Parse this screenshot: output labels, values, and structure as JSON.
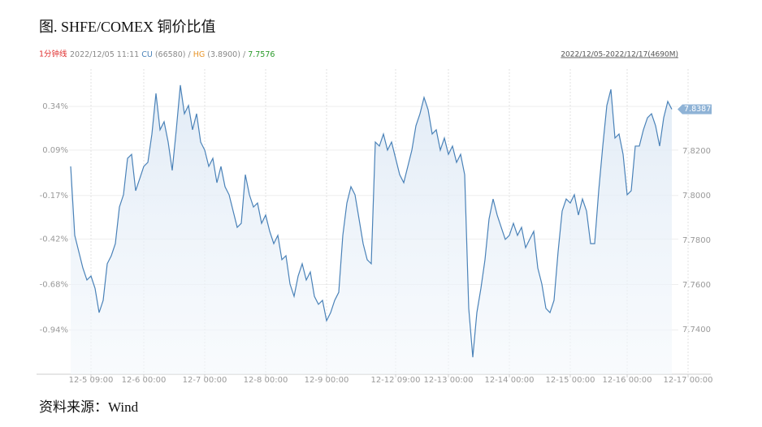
{
  "chart_data": {
    "type": "line",
    "title": "图. SHFE/COMEX 铜价比值",
    "source": "资料来源：Wind",
    "info": {
      "period": "1分钟线",
      "time": "2022/12/05 11:11",
      "cu_name": "CU",
      "cu_value": "(66580)",
      "separator": "/",
      "hg_name": "HG",
      "hg_value": "(3.8900)",
      "ratio": "7.7576",
      "range": "2022/12/05-2022/12/17(4690M)"
    },
    "categories": [
      null,
      null,
      null,
      null,
      null,
      "12-5 09:00",
      null,
      null,
      null,
      null,
      null,
      null,
      null,
      null,
      null,
      null,
      null,
      null,
      "12-6 00:00",
      null,
      null,
      null,
      null,
      null,
      null,
      null,
      null,
      null,
      null,
      null,
      null,
      null,
      null,
      "12-7 00:00",
      null,
      null,
      null,
      null,
      null,
      null,
      null,
      null,
      null,
      null,
      null,
      null,
      null,
      null,
      "12-8 00:00",
      null,
      null,
      null,
      null,
      null,
      null,
      null,
      null,
      null,
      null,
      null,
      null,
      null,
      null,
      "12-9 00:00",
      null,
      null,
      null,
      null,
      null,
      null,
      null,
      null,
      null,
      null,
      null,
      null,
      null,
      null,
      null,
      null,
      "12-12 09:00",
      null,
      null,
      null,
      null,
      null,
      null,
      null,
      null,
      null,
      null,
      null,
      null,
      "12-13 00:00",
      null,
      null,
      null,
      null,
      null,
      null,
      null,
      null,
      null,
      null,
      null,
      null,
      null,
      null,
      "12-14 00:00",
      null,
      null,
      null,
      null,
      null,
      null,
      null,
      null,
      null,
      null,
      null,
      null,
      null,
      null,
      "12-15 00:00",
      null,
      null,
      null,
      null,
      null,
      null,
      null,
      null,
      null,
      null,
      null,
      null,
      null,
      "12-16 00:00",
      null,
      null,
      null,
      null,
      null,
      null,
      null,
      null,
      null,
      null,
      null,
      null,
      null,
      null,
      "12-17 00:00",
      null,
      null,
      null
    ],
    "series": [
      {
        "color": "#4a82b8",
        "values": [
          7.8131,
          7.7822,
          7.7749,
          7.7676,
          7.7622,
          7.764,
          7.7585,
          7.7476,
          7.7531,
          7.7695,
          7.7731,
          7.7785,
          7.7949,
          7.8004,
          7.8167,
          7.8185,
          7.8022,
          7.8076,
          7.8131,
          7.8149,
          7.8276,
          7.8458,
          7.8295,
          7.8331,
          7.824,
          7.8113,
          7.8295,
          7.8495,
          7.8367,
          7.8404,
          7.8295,
          7.8367,
          7.824,
          7.8204,
          7.8131,
          7.8167,
          7.8058,
          7.8131,
          7.804,
          7.8004,
          7.7931,
          7.7858,
          7.7876,
          7.8094,
          7.8004,
          7.7949,
          7.7967,
          7.7876,
          7.7913,
          7.784,
          7.7785,
          7.7822,
          7.7713,
          7.7731,
          7.7604,
          7.7549,
          7.764,
          7.7695,
          7.7622,
          7.7658,
          7.7549,
          7.7513,
          7.7531,
          7.744,
          7.7476,
          7.7531,
          7.7567,
          7.7822,
          7.7967,
          7.804,
          7.8004,
          7.7895,
          7.7785,
          7.7713,
          7.7695,
          7.824,
          7.8222,
          7.8276,
          7.8204,
          7.824,
          7.8167,
          7.8094,
          7.8058,
          7.8131,
          7.8204,
          7.8313,
          7.8367,
          7.844,
          7.8385,
          7.8276,
          7.8295,
          7.8204,
          7.8258,
          7.8185,
          7.8222,
          7.8149,
          7.8185,
          7.8094,
          7.7495,
          7.7276,
          7.7476,
          7.7585,
          7.7713,
          7.7895,
          7.7985,
          7.7913,
          7.7858,
          7.7804,
          7.7822,
          7.7876,
          7.7822,
          7.7858,
          7.7767,
          7.7804,
          7.784,
          7.7676,
          7.7604,
          7.7495,
          7.7476,
          7.7531,
          7.7749,
          7.7931,
          7.7985,
          7.7967,
          7.8004,
          7.7913,
          7.7985,
          7.7931,
          7.7785,
          7.7785,
          7.8022,
          7.8222,
          7.8404,
          7.8476,
          7.8258,
          7.8276,
          7.8185,
          7.8004,
          7.8022,
          7.8222,
          7.8222,
          7.8295,
          7.8349,
          7.8367,
          7.8313,
          7.8222,
          7.8349,
          7.8422,
          7.8387,
          null,
          null,
          null,
          null,
          null,
          null,
          null
        ]
      }
    ],
    "ylim": [
      7.72,
      7.856
    ],
    "yticks": [
      {
        "value": 7.74,
        "label": "7.7400"
      },
      {
        "value": 7.76,
        "label": "7.7600"
      },
      {
        "value": 7.78,
        "label": "7.7800"
      },
      {
        "value": 7.8,
        "label": "7.8000"
      },
      {
        "value": 7.82,
        "label": "7.8200"
      }
    ],
    "y2lim": [
      -1.194,
      0.545
    ],
    "y2ticks": [
      {
        "value": -0.94,
        "label": "-0.94%"
      },
      {
        "value": -0.68,
        "label": "-0.68%"
      },
      {
        "value": -0.42,
        "label": "-0.42%"
      },
      {
        "value": -0.17,
        "label": "-0.17%"
      },
      {
        "value": 0.09,
        "label": "0.09%"
      },
      {
        "value": 0.34,
        "label": "0.34%"
      }
    ],
    "grid": true
  }
}
